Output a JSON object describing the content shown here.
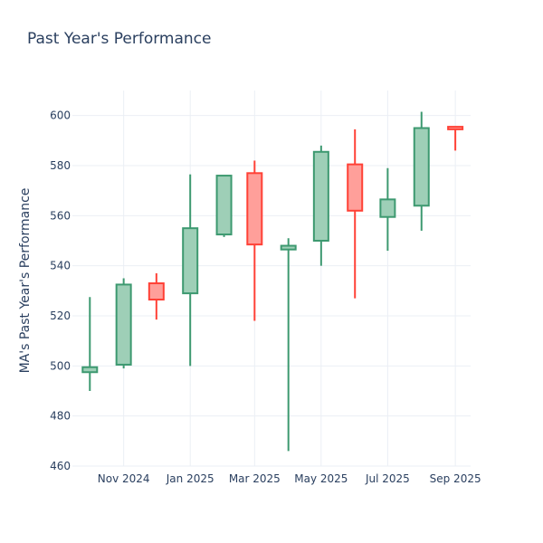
{
  "chart_data": {
    "type": "candlestick",
    "title": "Past Year's Performance",
    "ylabel": "MA's Past Year's Performance",
    "xlabel": "",
    "ylim": [
      460,
      610
    ],
    "y_ticks": [
      460,
      480,
      500,
      520,
      540,
      560,
      580,
      600
    ],
    "x_range": [
      "2024-09-15",
      "2025-09-15"
    ],
    "x_ticks": [
      {
        "date": "2024-11-01",
        "label": "Nov 2024"
      },
      {
        "date": "2025-01-01",
        "label": "Jan 2025"
      },
      {
        "date": "2025-03-01",
        "label": "Mar 2025"
      },
      {
        "date": "2025-05-01",
        "label": "May 2025"
      },
      {
        "date": "2025-07-01",
        "label": "Jul 2025"
      },
      {
        "date": "2025-09-01",
        "label": "Sep 2025"
      }
    ],
    "grid": true,
    "colors": {
      "increasing_line": "#3d9970",
      "increasing_fill": "#9ecfb7",
      "decreasing_line": "#ff4136",
      "decreasing_fill": "#ff9f9a",
      "grid": "#ebeff5",
      "text": "#2a3f5f"
    },
    "candles": [
      {
        "date": "2024-10-01",
        "open": 497.5,
        "high": 527.5,
        "low": 490,
        "close": 499.5
      },
      {
        "date": "2024-11-01",
        "open": 500.5,
        "high": 535,
        "low": 499,
        "close": 532.5
      },
      {
        "date": "2024-12-01",
        "open": 533,
        "high": 537,
        "low": 518.5,
        "close": 526.5
      },
      {
        "date": "2025-01-01",
        "open": 529,
        "high": 576.5,
        "low": 500,
        "close": 555
      },
      {
        "date": "2025-02-01",
        "open": 552.5,
        "high": 576,
        "low": 551.5,
        "close": 576
      },
      {
        "date": "2025-03-01",
        "open": 577,
        "high": 582,
        "low": 518,
        "close": 548.5
      },
      {
        "date": "2025-04-01",
        "open": 546.5,
        "high": 551,
        "low": 466,
        "close": 548
      },
      {
        "date": "2025-05-01",
        "open": 550,
        "high": 588,
        "low": 540,
        "close": 585.5
      },
      {
        "date": "2025-06-01",
        "open": 580.5,
        "high": 594.5,
        "low": 527,
        "close": 562
      },
      {
        "date": "2025-07-01",
        "open": 559.5,
        "high": 579,
        "low": 546,
        "close": 566.5
      },
      {
        "date": "2025-08-01",
        "open": 564,
        "high": 601.5,
        "low": 554,
        "close": 595
      },
      {
        "date": "2025-09-01",
        "open": 595.5,
        "high": 595.5,
        "low": 586,
        "close": 594.5
      }
    ]
  }
}
